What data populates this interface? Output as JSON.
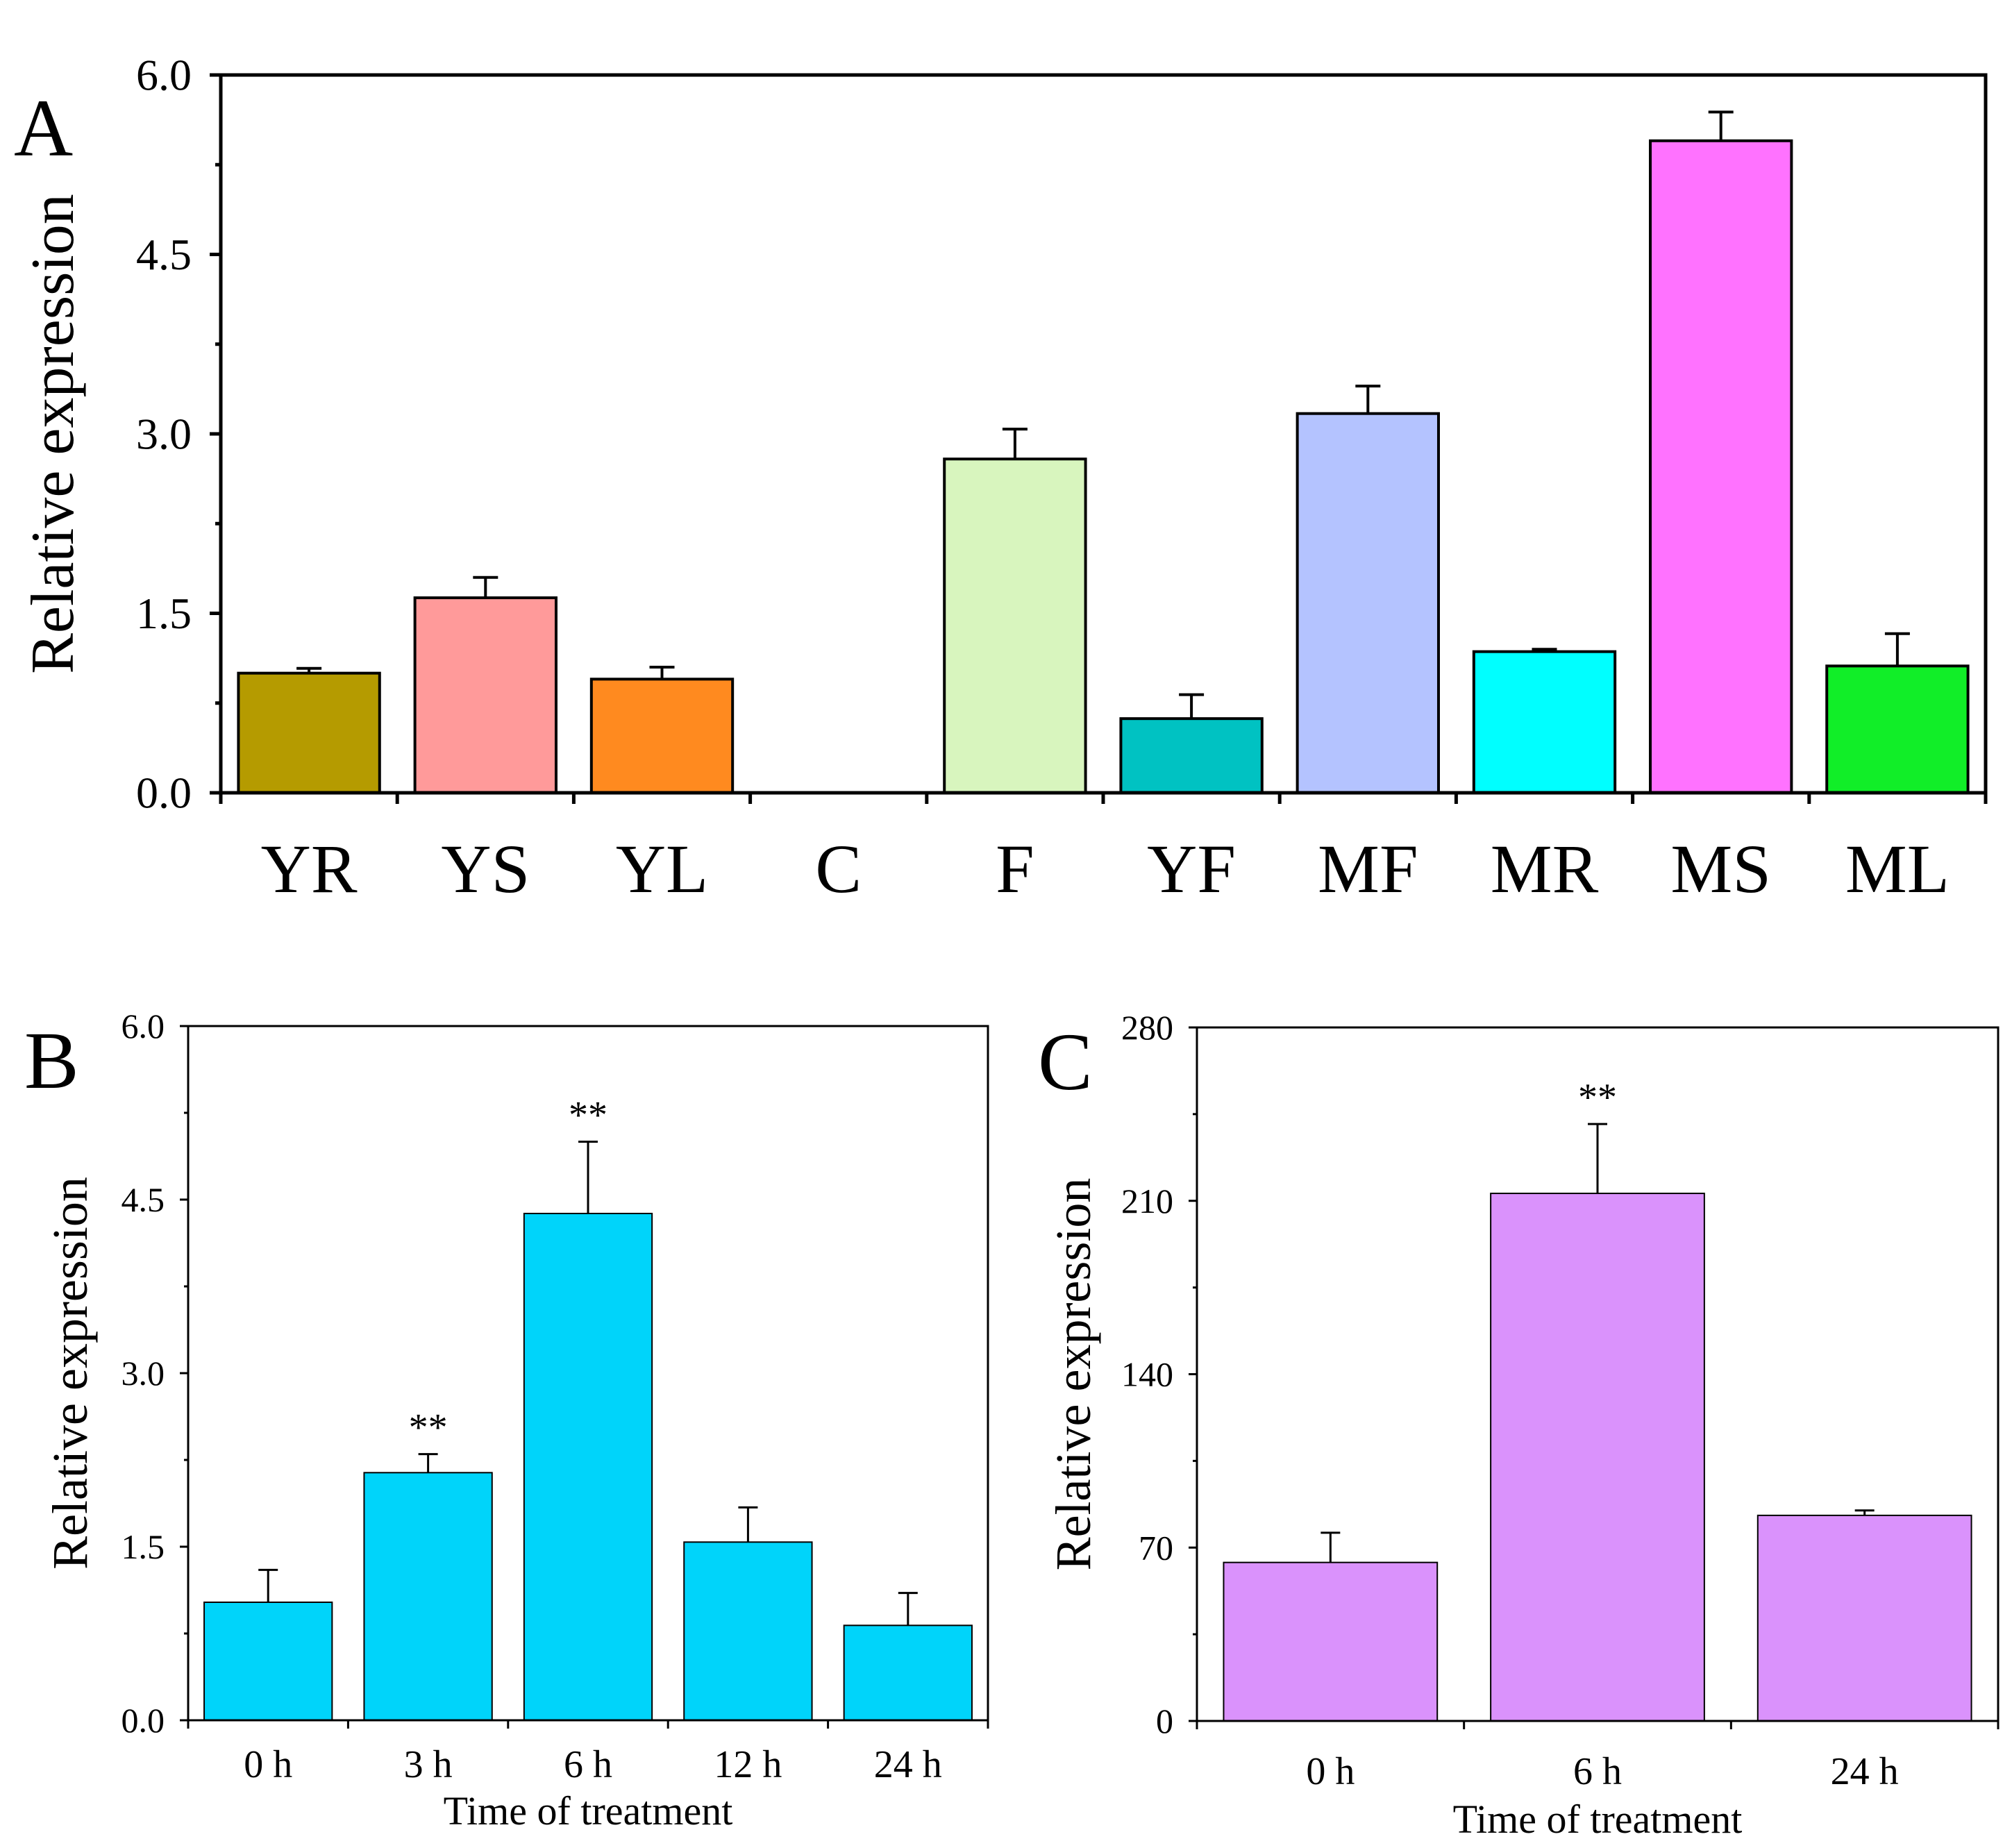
{
  "chart_data": [
    {
      "panel_label": "A",
      "type": "bar",
      "title": "",
      "xlabel": "",
      "ylabel": "Relative expression",
      "ylim": [
        0,
        6.0
      ],
      "yticks": [
        0.0,
        1.5,
        3.0,
        4.5,
        6.0
      ],
      "ytick_labels": [
        "0.0",
        "1.5",
        "3.0",
        "4.5",
        "6.0"
      ],
      "categories": [
        "YR",
        "YS",
        "YL",
        "C",
        "F",
        "YF",
        "MF",
        "MR",
        "MS",
        "ML"
      ],
      "values": [
        1.0,
        1.63,
        0.95,
        0.0,
        2.79,
        0.62,
        3.17,
        1.18,
        5.45,
        1.06
      ],
      "errors": [
        0.04,
        0.17,
        0.1,
        0.0,
        0.25,
        0.2,
        0.23,
        0.02,
        0.24,
        0.27
      ],
      "colors": [
        "#B59B00",
        "#FF9A9A",
        "#FF8A1F",
        "#FFFFFF",
        "#D8F5BE",
        "#00C2C2",
        "#B4C3FF",
        "#00FFFF",
        "#FF72FF",
        "#11EE28"
      ],
      "annotations": [
        "",
        "",
        "",
        "",
        "",
        "",
        "",
        "",
        "",
        ""
      ],
      "grid": false
    },
    {
      "panel_label": "B",
      "type": "bar",
      "title": "",
      "xlabel": "Time of treatment",
      "ylabel": "Relative expression",
      "ylim": [
        0,
        6.0
      ],
      "yticks": [
        0.0,
        1.5,
        3.0,
        4.5,
        6.0
      ],
      "ytick_labels": [
        "0.0",
        "1.5",
        "3.0",
        "4.5",
        "6.0"
      ],
      "categories": [
        "0 h",
        "3 h",
        "6 h",
        "12 h",
        "24 h"
      ],
      "values": [
        1.02,
        2.14,
        4.38,
        1.54,
        0.82
      ],
      "errors": [
        0.28,
        0.16,
        0.62,
        0.3,
        0.28
      ],
      "colors": [
        "#00D4FA",
        "#00D4FA",
        "#00D4FA",
        "#00D4FA",
        "#00D4FA"
      ],
      "annotations": [
        "",
        "**",
        "**",
        "",
        ""
      ],
      "grid": false
    },
    {
      "panel_label": "C",
      "type": "bar",
      "title": "",
      "xlabel": "Time of treatment",
      "ylabel": "Relative expression",
      "ylim": [
        0,
        280
      ],
      "yticks": [
        0,
        70,
        140,
        210,
        280
      ],
      "ytick_labels": [
        "0",
        "70",
        "140",
        "210",
        "280"
      ],
      "categories": [
        "0 h",
        "6 h",
        "24 h"
      ],
      "values": [
        64,
        213,
        83
      ],
      "errors": [
        12,
        28,
        2
      ],
      "colors": [
        "#DA92FC",
        "#DA92FC",
        "#DA92FC"
      ],
      "annotations": [
        "",
        "**",
        ""
      ],
      "grid": false
    }
  ]
}
